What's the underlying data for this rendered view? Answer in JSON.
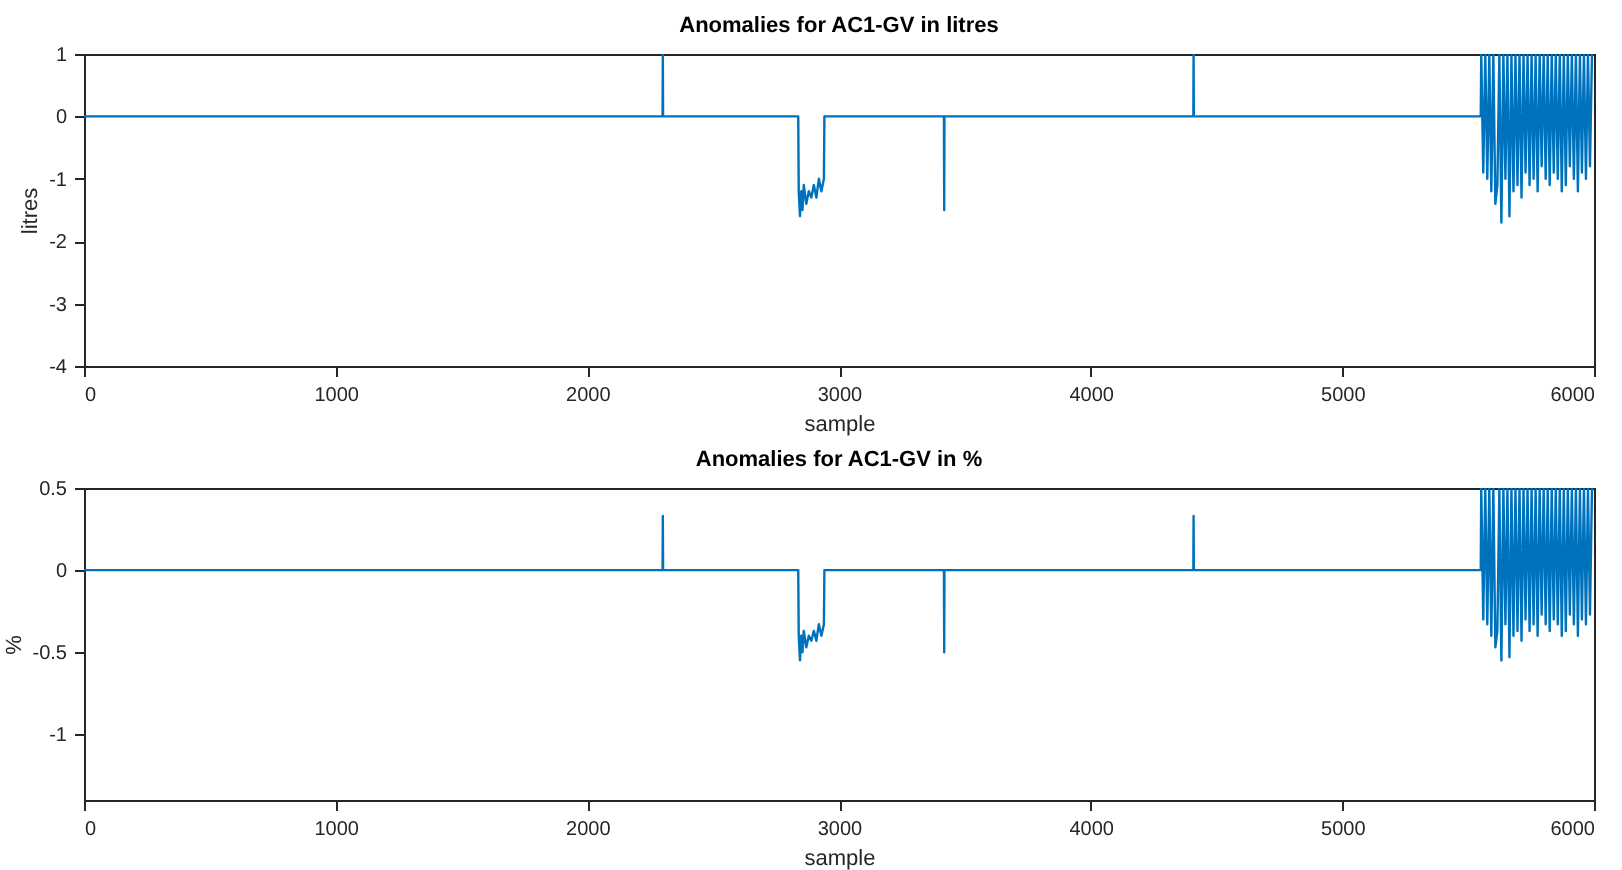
{
  "chart_data": [
    {
      "type": "line",
      "title": "Anomalies for AC1-GV in litres",
      "xlabel": "sample",
      "ylabel": "litres",
      "xlim": [
        0,
        6000
      ],
      "xticks": [
        0,
        1000,
        2000,
        3000,
        4000,
        5000,
        6000
      ],
      "ylim": [
        -4,
        1
      ],
      "yticks": [
        -4,
        -3,
        -2,
        -1,
        0,
        1
      ],
      "grid": false,
      "marker": "none",
      "line_style": "solid",
      "x": [
        0,
        2299,
        2300,
        2301,
        2838,
        2840,
        2845,
        2850,
        2855,
        2860,
        2870,
        2880,
        2890,
        2900,
        2910,
        2920,
        2930,
        2940,
        2942,
        3417,
        3418,
        3419,
        4408,
        4409,
        4410,
        5550,
        5552,
        5560,
        5568,
        5576,
        5584,
        5592,
        5600,
        5608,
        5616,
        5624,
        5632,
        5640,
        5648,
        5656,
        5664,
        5672,
        5680,
        5688,
        5696,
        5704,
        5712,
        5720,
        5728,
        5736,
        5744,
        5752,
        5760,
        5768,
        5776,
        5784,
        5792,
        5800,
        5808,
        5816,
        5824,
        5832,
        5840,
        5848,
        5856,
        5864,
        5872,
        5880,
        5888,
        5896,
        5904,
        5912,
        5920,
        5928,
        5936,
        5944,
        5952,
        5960,
        5968,
        5976,
        5984,
        5992
      ],
      "series": [
        {
          "color": "#0072bd",
          "values": [
            0,
            0,
            1,
            0,
            0,
            -1.2,
            -1.6,
            -1.2,
            -1.5,
            -1.1,
            -1.4,
            -1.2,
            -1.3,
            -1.1,
            -1.3,
            -1.0,
            -1.2,
            -1.0,
            0,
            0,
            -1.5,
            0,
            0,
            1,
            0,
            0,
            1,
            -0.9,
            1,
            -1.0,
            1,
            -1.2,
            1,
            -1.4,
            -1.1,
            1,
            -1.7,
            1,
            -1.0,
            1,
            -1.6,
            1,
            -1.2,
            1,
            -1.1,
            1,
            -1.3,
            1,
            -0.9,
            1,
            -1.1,
            1,
            -1.0,
            1,
            -1.2,
            1,
            -0.8,
            1,
            -1.0,
            1,
            -1.1,
            1,
            -0.9,
            1,
            -1.0,
            1,
            -1.2,
            1,
            -1.1,
            1,
            -0.8,
            1,
            -1.0,
            1,
            -1.2,
            1,
            -0.9,
            1,
            -1.0,
            1,
            -0.8,
            1
          ]
        }
      ]
    },
    {
      "type": "line",
      "title": "Anomalies for AC1-GV in %",
      "xlabel": "sample",
      "ylabel": "%",
      "xlim": [
        0,
        6000
      ],
      "xticks": [
        0,
        1000,
        2000,
        3000,
        4000,
        5000,
        6000
      ],
      "ylim": [
        -1.4,
        0.5
      ],
      "yticks": [
        -1,
        -0.5,
        0,
        0.5
      ],
      "grid": false,
      "marker": "none",
      "line_style": "solid",
      "x": [
        0,
        2299,
        2300,
        2301,
        2838,
        2840,
        2845,
        2850,
        2855,
        2860,
        2870,
        2880,
        2890,
        2900,
        2910,
        2920,
        2930,
        2940,
        2942,
        3417,
        3418,
        3419,
        4408,
        4409,
        4410,
        5550,
        5552,
        5560,
        5568,
        5576,
        5584,
        5592,
        5600,
        5608,
        5616,
        5624,
        5632,
        5640,
        5648,
        5656,
        5664,
        5672,
        5680,
        5688,
        5696,
        5704,
        5712,
        5720,
        5728,
        5736,
        5744,
        5752,
        5760,
        5768,
        5776,
        5784,
        5792,
        5800,
        5808,
        5816,
        5824,
        5832,
        5840,
        5848,
        5856,
        5864,
        5872,
        5880,
        5888,
        5896,
        5904,
        5912,
        5920,
        5928,
        5936,
        5944,
        5952,
        5960,
        5968,
        5976,
        5984,
        5992
      ],
      "series": [
        {
          "color": "#0072bd",
          "values": [
            0,
            0,
            0.33,
            0,
            0,
            -0.4,
            -0.55,
            -0.4,
            -0.5,
            -0.37,
            -0.47,
            -0.4,
            -0.43,
            -0.37,
            -0.43,
            -0.33,
            -0.4,
            -0.33,
            0,
            0,
            -0.5,
            0,
            0,
            0.33,
            0,
            0,
            0.5,
            -0.3,
            0.5,
            -0.33,
            0.5,
            -0.4,
            0.5,
            -0.47,
            -0.37,
            0.5,
            -0.55,
            0.5,
            -0.33,
            0.5,
            -0.53,
            0.5,
            -0.4,
            0.5,
            -0.37,
            0.5,
            -0.43,
            0.5,
            -0.3,
            0.5,
            -0.37,
            0.5,
            -0.33,
            0.5,
            -0.4,
            0.5,
            -0.27,
            0.5,
            -0.33,
            0.5,
            -0.37,
            0.5,
            -0.3,
            0.5,
            -0.33,
            0.5,
            -0.4,
            0.5,
            -0.37,
            0.5,
            -0.27,
            0.5,
            -0.33,
            0.5,
            -0.4,
            0.5,
            -0.3,
            0.5,
            -0.33,
            0.5,
            -0.27,
            0.5
          ]
        }
      ]
    }
  ]
}
